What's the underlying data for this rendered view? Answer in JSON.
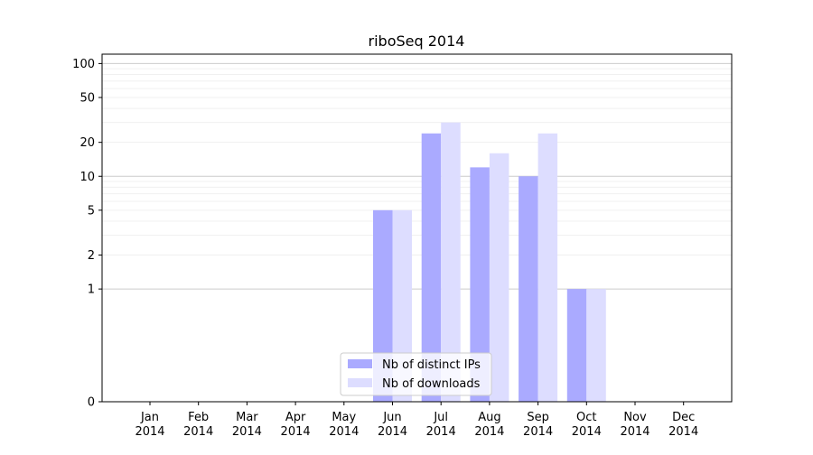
{
  "chart_data": {
    "type": "bar",
    "title": "riboSeq 2014",
    "xlabel": "",
    "ylabel": "",
    "yscale": "symlog",
    "categories": [
      "Jan\n2014",
      "Feb\n2014",
      "Mar\n2014",
      "Apr\n2014",
      "May\n2014",
      "Jun\n2014",
      "Jul\n2014",
      "Aug\n2014",
      "Sep\n2014",
      "Oct\n2014",
      "Nov\n2014",
      "Dec\n2014"
    ],
    "series": [
      {
        "name": "Nb of distinct IPs",
        "color": "#aaaaff",
        "values": [
          0,
          0,
          0,
          0,
          0,
          5,
          24,
          12,
          10,
          1,
          0,
          0
        ]
      },
      {
        "name": "Nb of downloads",
        "color": "#ddddff",
        "values": [
          0,
          0,
          0,
          0,
          0,
          5,
          30,
          16,
          24,
          1,
          0,
          0
        ]
      }
    ],
    "yticks": [
      0,
      1,
      2,
      5,
      10,
      20,
      50,
      100
    ],
    "ylim": [
      0,
      120
    ],
    "grid": true,
    "legend": "lower-center"
  }
}
